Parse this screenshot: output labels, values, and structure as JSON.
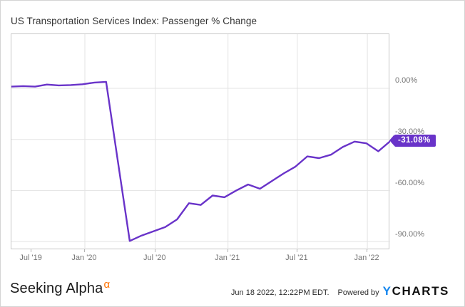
{
  "header": {
    "title": "US Transportation Services Index: Passenger % Change"
  },
  "chart_data": {
    "type": "line",
    "title": "US Transportation Services Index: Passenger % Change",
    "x": [
      "Jul '19",
      "Aug '19",
      "Sep '19",
      "Oct '19",
      "Nov '19",
      "Dec '19",
      "Jan '20",
      "Feb '20",
      "Mar '20",
      "Apr '20",
      "May '20",
      "Jun '20",
      "Jul '20",
      "Aug '20",
      "Sep '20",
      "Oct '20",
      "Nov '20",
      "Dec '20",
      "Jan '21",
      "Feb '21",
      "Mar '21",
      "Apr '21",
      "May '21",
      "Jun '21",
      "Jul '21",
      "Aug '21",
      "Sep '21",
      "Oct '21",
      "Nov '21",
      "Dec '21",
      "Jan '22",
      "Feb '22",
      "Mar '22"
    ],
    "series": [
      {
        "name": "US Transportation Services Index: Passenger % Change",
        "values": [
          1.0,
          1.3,
          1.0,
          2.2,
          1.7,
          1.9,
          2.4,
          3.4,
          3.8,
          -43.0,
          -89.7,
          -86.5,
          -84.0,
          -81.5,
          -77.0,
          -67.5,
          -68.5,
          -63.0,
          -64.0,
          -60.0,
          -56.5,
          -59.0,
          -54.5,
          -50.0,
          -46.0,
          -40.0,
          -41.0,
          -39.0,
          -34.5,
          -31.3,
          -32.3,
          -37.0,
          -31.08
        ]
      }
    ],
    "last_value": -31.08,
    "last_value_label": "-31.08%",
    "y_ticks": [
      {
        "value": 0,
        "label": "0.00%"
      },
      {
        "value": -30,
        "label": "-30.00%"
      },
      {
        "value": -60,
        "label": "-60.00%"
      },
      {
        "value": -90,
        "label": "-90.00%"
      }
    ],
    "x_ticks": [
      {
        "label": "Jul '19",
        "pos": 0.053,
        "gridline": false
      },
      {
        "label": "Jan '20",
        "pos": 0.194,
        "gridline": true
      },
      {
        "label": "Jul '20",
        "pos": 0.38,
        "gridline": true
      },
      {
        "label": "Jan '21",
        "pos": 0.572,
        "gridline": true
      },
      {
        "label": "Jul '21",
        "pos": 0.755,
        "gridline": true
      },
      {
        "label": "Jan '22",
        "pos": 0.94,
        "gridline": true
      }
    ],
    "ylim": [
      -95,
      31.8
    ],
    "grid": true,
    "legend": "none",
    "colors": {
      "line": "#6933c9",
      "badge_bg": "#6933c9",
      "badge_text": "#ffffff",
      "gridline": "#e3e3e3"
    }
  },
  "footer": {
    "brand": "Seeking Alpha",
    "brand_alpha": "α",
    "alpha_color": "#ff7200",
    "timestamp": "Jun 18 2022, 12:22PM EDT.",
    "powered_by": "Powered by",
    "ycharts_y": "Y",
    "ycharts_y_color": "#1787ee",
    "ycharts_rest": "CHARTS"
  }
}
